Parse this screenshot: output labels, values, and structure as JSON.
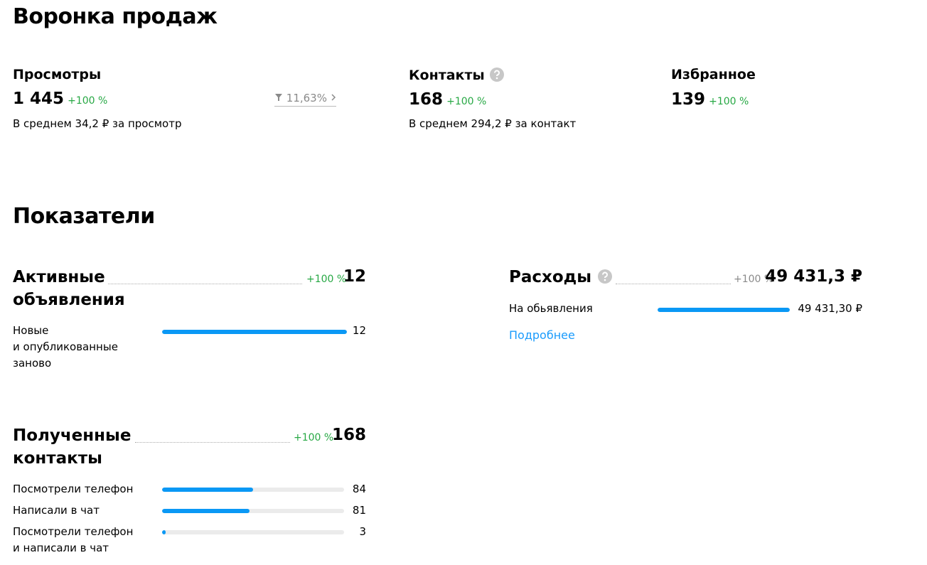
{
  "funnel": {
    "title": "Воронка продаж",
    "metrics": [
      {
        "name": "Просмотры",
        "value": "1 445",
        "change": "+100 %",
        "note": "В среднем 34,2 ₽ за просмотр",
        "conversion": "11,63%"
      },
      {
        "name": "Контакты",
        "value": "168",
        "change": "+100 %",
        "note": "В среднем 294,2 ₽ за контакт"
      },
      {
        "name": "Избранное",
        "value": "139",
        "change": "+100 %"
      }
    ]
  },
  "indicators": {
    "title": "Показатели",
    "active": {
      "name": "Активные\nобъявления",
      "change": "+100 %",
      "total": 12,
      "rows": [
        {
          "label": "Новые\nи опубликованные\nзаново",
          "value": 12
        }
      ]
    },
    "contacts": {
      "name": "Полученные\nконтакты",
      "change": "+100 %",
      "total": 168,
      "rows": [
        {
          "label": "Посмотрели телефон",
          "value": 84
        },
        {
          "label": "Написали в чат",
          "value": 81
        },
        {
          "label": "Посмотрели телефон\nи написали в чат",
          "value": 3
        }
      ]
    },
    "expenses": {
      "name": "Расходы",
      "change": "+100 %",
      "total": {
        "value": 49431.3,
        "label": "49 431,3 ₽"
      },
      "rows": [
        {
          "label": "На обьявления",
          "value": {
            "value": 49431.3,
            "label": "49 431,30 ₽"
          }
        }
      ],
      "link": "Подробнее"
    }
  }
}
